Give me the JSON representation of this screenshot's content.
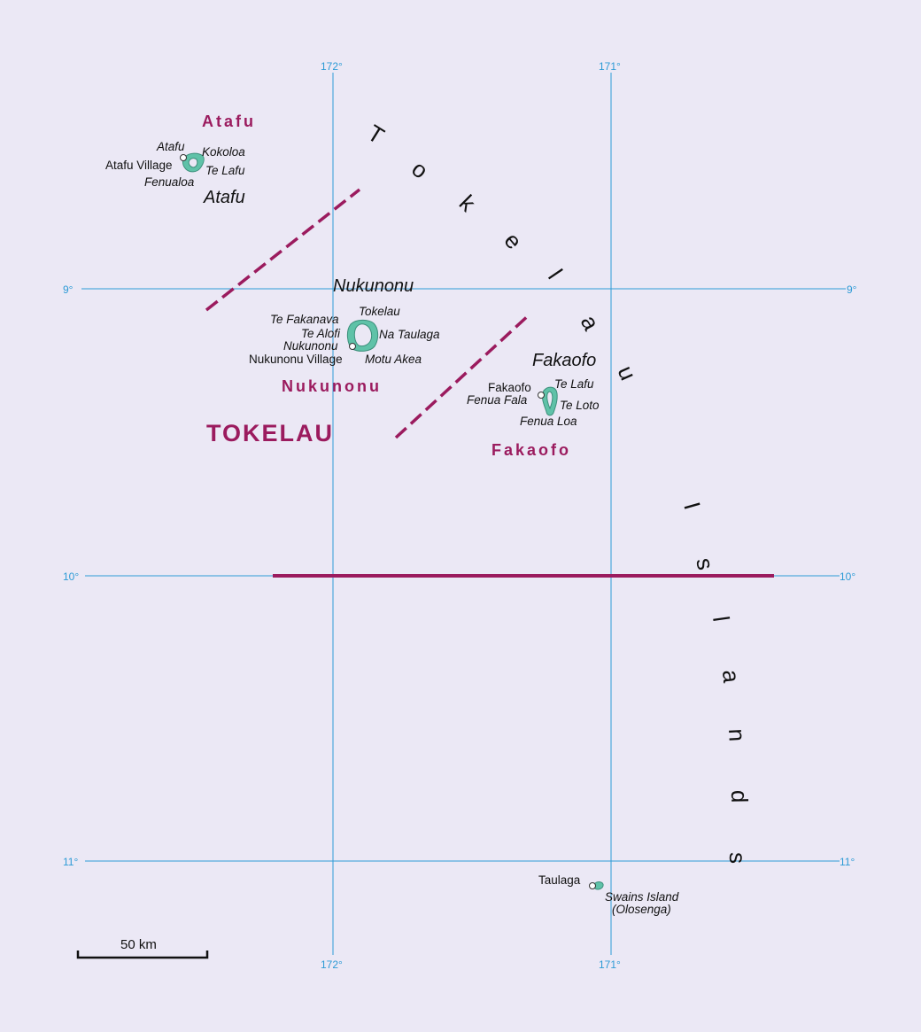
{
  "map": {
    "longitudes": [
      {
        "label_top": "172°",
        "label_bottom": "172°"
      },
      {
        "label_top": "171°",
        "label_bottom": "171°"
      }
    ],
    "latitudes": [
      {
        "label_left": "9°",
        "label_right": "9°"
      },
      {
        "label_left": "10°",
        "label_right": "10°"
      },
      {
        "label_left": "11°",
        "label_right": "11°"
      }
    ],
    "country": "TOKELAU",
    "chain_title": "Tokelau Islands",
    "chain_letters": [
      "T",
      "o",
      "k",
      "e",
      "l",
      "a",
      "u",
      "I",
      "s",
      "l",
      "a",
      "n",
      "d",
      "s"
    ],
    "regions": {
      "atafu": "Atafu",
      "nukunonu": "Nukunonu",
      "fakaofo": "Fakaofo"
    },
    "atolls": {
      "atafu": "Atafu",
      "nukunonu": "Nukunonu",
      "fakaofo": "Fakaofo"
    },
    "places": {
      "atafu_islet": "Atafu",
      "kokoloa": "Kokoloa",
      "atafu_village": "Atafu Village",
      "te_lafu_atafu": "Te Lafu",
      "fenualoa": "Fenualoa",
      "te_fakanava": "Te Fakanava",
      "tokelau": "Tokelau",
      "te_alofi": "Te Alofi",
      "na_taulaga": "Na Taulaga",
      "nukunonu_islet": "Nukunonu",
      "nukunonu_village": "Nukunonu Village",
      "motu_akea": "Motu Akea",
      "fakaofo_town": "Fakaofo",
      "te_lafu_fakaofo": "Te Lafu",
      "fenua_fala": "Fenua Fala",
      "te_loto": "Te Loto",
      "fenua_loa": "Fenua Loa",
      "taulaga": "Taulaga",
      "swains_island": "Swains Island",
      "olosenga": "(Olosenga)"
    },
    "colors": {
      "background": "#ebe8f5",
      "grid": "#2e9bd6",
      "boundary": "#9b1b5e",
      "land": "#5fc2a8"
    },
    "scale_bar": {
      "label": "50 km"
    }
  }
}
